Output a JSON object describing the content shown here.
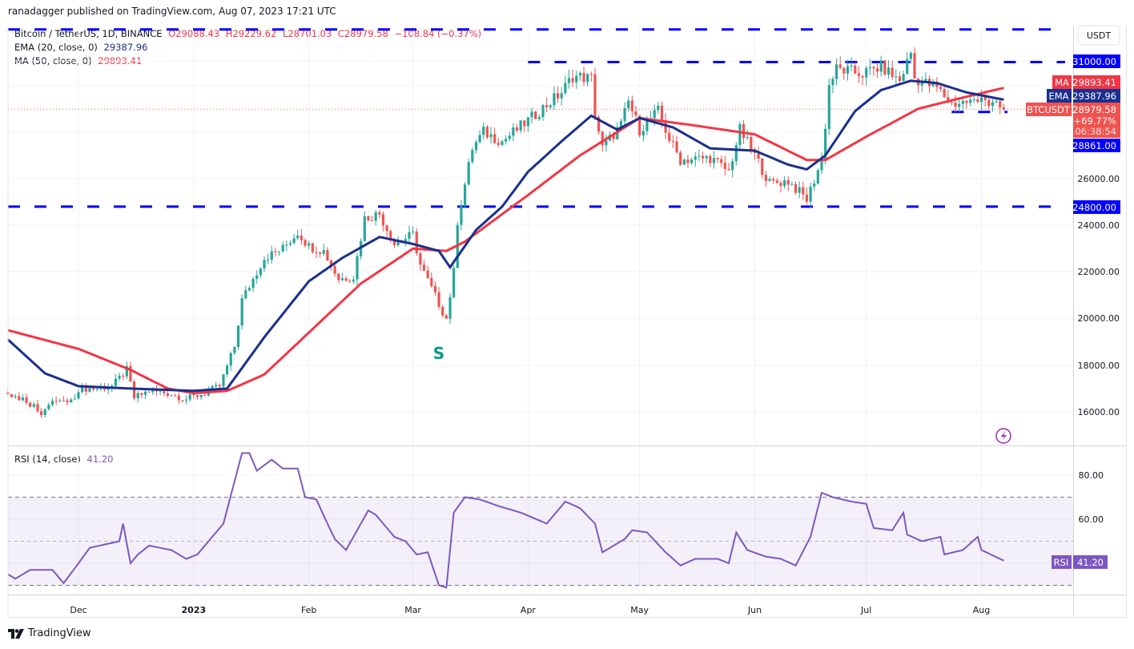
{
  "header": {
    "published": "ranadagger published on TradingView.com, Aug 07, 2023 17:21 UTC"
  },
  "legend": {
    "symbol": "Bitcoin / TetherUS, 1D, BINANCE",
    "open": "O29088.43",
    "high": "H29229.62",
    "low": "L28701.03",
    "close": "C28979.58",
    "change": "−108.84 (−0.37%)",
    "ema_label": "EMA (20, close, 0)",
    "ema_value": "29387.96",
    "ma_label": "MA (50, close, 0)",
    "ma_value": "29893.41",
    "rsi_label": "RSI (14, close)",
    "rsi_value": "41.20"
  },
  "axis": {
    "currency_button": "USDT",
    "price_ticks": [
      "26000.00",
      "24000.00",
      "22000.00",
      "20000.00",
      "18000.00",
      "16000.00"
    ],
    "rsi_ticks": [
      "80.00",
      "60.00"
    ],
    "x_ticks": [
      "Dec",
      "2023",
      "Feb",
      "Mar",
      "Apr",
      "May",
      "Jun",
      "Jul",
      "Aug"
    ],
    "level_labels": [
      "31000.00",
      "24800.00",
      "28861.00"
    ],
    "ma_tag": "MA",
    "ma_price": "29893.41",
    "ema_tag": "EMA",
    "ema_price": "29387.96",
    "symbol_tag": "BTCUSDT",
    "last_price": "28979.58",
    "last_change": "+69.77%",
    "countdown": "06:38:54",
    "rsi_tag": "RSI",
    "rsi_price": "41.20"
  },
  "annotation": {
    "s_label": "S"
  },
  "footer": {
    "brand": "TradingView"
  },
  "colors": {
    "up": "#26a69a",
    "down": "#ef5350",
    "ema": "#1a2f8f",
    "ma": "#f23645",
    "rsi": "#7e57c2",
    "levels": "#0000ff"
  },
  "chart_data": [
    {
      "type": "candlestick",
      "title": "Bitcoin / TetherUS, 1D, BINANCE",
      "ylim": [
        15000,
        33000
      ],
      "x_range": [
        "2022-11-12",
        "2023-08-07"
      ],
      "grid": true,
      "close_path": [
        [
          "2022-11-12",
          16700
        ],
        [
          "2022-11-16",
          16600
        ],
        [
          "2022-11-21",
          16000
        ],
        [
          "2022-11-25",
          16500
        ],
        [
          "2022-11-29",
          16400
        ],
        [
          "2022-12-01",
          17000
        ],
        [
          "2022-12-06",
          17000
        ],
        [
          "2022-12-10",
          17100
        ],
        [
          "2022-12-14",
          17800
        ],
        [
          "2022-12-16",
          16600
        ],
        [
          "2022-12-20",
          16900
        ],
        [
          "2022-12-25",
          16800
        ],
        [
          "2022-12-30",
          16550
        ],
        [
          "2023-01-04",
          16800
        ],
        [
          "2023-01-08",
          17100
        ],
        [
          "2023-01-12",
          18800
        ],
        [
          "2023-01-14",
          20800
        ],
        [
          "2023-01-20",
          22600
        ],
        [
          "2023-01-25",
          23000
        ],
        [
          "2023-01-29",
          23700
        ],
        [
          "2023-02-01",
          23100
        ],
        [
          "2023-02-05",
          22900
        ],
        [
          "2023-02-09",
          21700
        ],
        [
          "2023-02-13",
          21800
        ],
        [
          "2023-02-16",
          24300
        ],
        [
          "2023-02-20",
          24500
        ],
        [
          "2023-02-24",
          23200
        ],
        [
          "2023-03-01",
          23600
        ],
        [
          "2023-03-03",
          22300
        ],
        [
          "2023-03-09",
          20300
        ],
        [
          "2023-03-10",
          20000
        ],
        [
          "2023-03-12",
          22000
        ],
        [
          "2023-03-13",
          24200
        ],
        [
          "2023-03-17",
          27300
        ],
        [
          "2023-03-20",
          28000
        ],
        [
          "2023-03-25",
          27600
        ],
        [
          "2023-04-01",
          28500
        ],
        [
          "2023-04-10",
          29700
        ],
        [
          "2023-04-13",
          30400
        ],
        [
          "2023-04-18",
          30300
        ],
        [
          "2023-04-19",
          28800
        ],
        [
          "2023-04-21",
          27300
        ],
        [
          "2023-04-26",
          28300
        ],
        [
          "2023-04-28",
          29300
        ],
        [
          "2023-05-01",
          28100
        ],
        [
          "2023-05-06",
          28900
        ],
        [
          "2023-05-09",
          27700
        ],
        [
          "2023-05-12",
          26800
        ],
        [
          "2023-05-20",
          26900
        ],
        [
          "2023-05-25",
          26300
        ],
        [
          "2023-05-28",
          28100
        ],
        [
          "2023-06-01",
          27000
        ],
        [
          "2023-06-05",
          25800
        ],
        [
          "2023-06-10",
          25900
        ],
        [
          "2023-06-15",
          25100
        ],
        [
          "2023-06-19",
          26800
        ],
        [
          "2023-06-20",
          28300
        ],
        [
          "2023-06-21",
          30000
        ],
        [
          "2023-06-23",
          30700
        ],
        [
          "2023-06-30",
          30500
        ],
        [
          "2023-07-05",
          30800
        ],
        [
          "2023-07-10",
          30200
        ],
        [
          "2023-07-13",
          31400
        ],
        [
          "2023-07-14",
          30300
        ],
        [
          "2023-07-20",
          29900
        ],
        [
          "2023-07-24",
          29200
        ],
        [
          "2023-07-28",
          29300
        ],
        [
          "2023-07-31",
          29300
        ],
        [
          "2023-08-01",
          29700
        ],
        [
          "2023-08-03",
          29200
        ],
        [
          "2023-08-07",
          28979.58
        ]
      ],
      "ema20": [
        [
          "2022-11-12",
          19100
        ],
        [
          "2022-11-22",
          17650
        ],
        [
          "2022-12-01",
          17100
        ],
        [
          "2022-12-15",
          17000
        ],
        [
          "2023-01-01",
          16900
        ],
        [
          "2023-01-10",
          17000
        ],
        [
          "2023-01-20",
          19200
        ],
        [
          "2023-02-01",
          21600
        ],
        [
          "2023-02-10",
          22600
        ],
        [
          "2023-02-20",
          23500
        ],
        [
          "2023-03-01",
          23200
        ],
        [
          "2023-03-08",
          22900
        ],
        [
          "2023-03-11",
          22200
        ],
        [
          "2023-03-18",
          23800
        ],
        [
          "2023-03-25",
          24800
        ],
        [
          "2023-04-01",
          26300
        ],
        [
          "2023-04-10",
          27600
        ],
        [
          "2023-04-18",
          28700
        ],
        [
          "2023-04-25",
          28100
        ],
        [
          "2023-05-01",
          28600
        ],
        [
          "2023-05-10",
          28200
        ],
        [
          "2023-05-20",
          27300
        ],
        [
          "2023-06-01",
          27200
        ],
        [
          "2023-06-10",
          26600
        ],
        [
          "2023-06-15",
          26400
        ],
        [
          "2023-06-20",
          27000
        ],
        [
          "2023-06-28",
          28900
        ],
        [
          "2023-07-05",
          29800
        ],
        [
          "2023-07-13",
          30200
        ],
        [
          "2023-07-20",
          30100
        ],
        [
          "2023-07-28",
          29700
        ],
        [
          "2023-08-07",
          29387.96
        ]
      ],
      "ma50": [
        [
          "2022-11-12",
          19500
        ],
        [
          "2022-12-01",
          18700
        ],
        [
          "2022-12-15",
          17800
        ],
        [
          "2022-12-25",
          17000
        ],
        [
          "2023-01-01",
          16800
        ],
        [
          "2023-01-10",
          16900
        ],
        [
          "2023-01-20",
          17600
        ],
        [
          "2023-02-01",
          19400
        ],
        [
          "2023-02-15",
          21500
        ],
        [
          "2023-03-01",
          23000
        ],
        [
          "2023-03-10",
          22900
        ],
        [
          "2023-03-15",
          23300
        ],
        [
          "2023-04-01",
          25300
        ],
        [
          "2023-04-15",
          27000
        ],
        [
          "2023-05-01",
          28600
        ],
        [
          "2023-05-15",
          28300
        ],
        [
          "2023-06-01",
          27900
        ],
        [
          "2023-06-15",
          26800
        ],
        [
          "2023-06-20",
          26800
        ],
        [
          "2023-07-01",
          27800
        ],
        [
          "2023-07-15",
          29000
        ],
        [
          "2023-07-25",
          29400
        ],
        [
          "2023-08-07",
          29893.41
        ]
      ],
      "horizontal_lines": [
        {
          "price": 32400,
          "from": "2022-11-12"
        },
        {
          "price": 31000,
          "from": "2023-04-01",
          "label": "31000.00"
        },
        {
          "price": 24800,
          "from": "2022-11-12",
          "label": "24800.00"
        },
        {
          "price": 28861,
          "from": "2023-07-24",
          "to": "2023-08-08",
          "label": "28861.00"
        }
      ],
      "annotations": [
        {
          "text": "S",
          "date": "2023-03-08",
          "price": 18000
        }
      ]
    },
    {
      "type": "line",
      "title": "RSI (14, close)",
      "ylim": [
        22,
        95
      ],
      "bands": [
        30,
        50,
        70
      ],
      "series": [
        {
          "name": "RSI",
          "values": [
            [
              "2022-11-12",
              35
            ],
            [
              "2022-11-14",
              33
            ],
            [
              "2022-11-18",
              37
            ],
            [
              "2022-11-24",
              37
            ],
            [
              "2022-11-27",
              31
            ],
            [
              "2022-12-01",
              40
            ],
            [
              "2022-12-04",
              47
            ],
            [
              "2022-12-12",
              50
            ],
            [
              "2022-12-13",
              58
            ],
            [
              "2022-12-15",
              40
            ],
            [
              "2022-12-17",
              44
            ],
            [
              "2022-12-20",
              48
            ],
            [
              "2022-12-26",
              46
            ],
            [
              "2022-12-30",
              42
            ],
            [
              "2023-01-02",
              44
            ],
            [
              "2023-01-05",
              50
            ],
            [
              "2023-01-09",
              58
            ],
            [
              "2023-01-14",
              90
            ],
            [
              "2023-01-16",
              90
            ],
            [
              "2023-01-18",
              82
            ],
            [
              "2023-01-22",
              87
            ],
            [
              "2023-01-25",
              83
            ],
            [
              "2023-01-29",
              83
            ],
            [
              "2023-01-31",
              70
            ],
            [
              "2023-02-03",
              69
            ],
            [
              "2023-02-06",
              58
            ],
            [
              "2023-02-08",
              51
            ],
            [
              "2023-02-11",
              46
            ],
            [
              "2023-02-13",
              52
            ],
            [
              "2023-02-17",
              64
            ],
            [
              "2023-02-19",
              62
            ],
            [
              "2023-02-24",
              52
            ],
            [
              "2023-02-27",
              50
            ],
            [
              "2023-03-02",
              44
            ],
            [
              "2023-03-05",
              45
            ],
            [
              "2023-03-08",
              30
            ],
            [
              "2023-03-10",
              29
            ],
            [
              "2023-03-12",
              63
            ],
            [
              "2023-03-15",
              70
            ],
            [
              "2023-03-19",
              69
            ],
            [
              "2023-03-24",
              66
            ],
            [
              "2023-03-30",
              63
            ],
            [
              "2023-04-06",
              58
            ],
            [
              "2023-04-11",
              68
            ],
            [
              "2023-04-15",
              65
            ],
            [
              "2023-04-19",
              58
            ],
            [
              "2023-04-21",
              45
            ],
            [
              "2023-04-27",
              51
            ],
            [
              "2023-04-29",
              55
            ],
            [
              "2023-05-03",
              54
            ],
            [
              "2023-05-08",
              45
            ],
            [
              "2023-05-12",
              39
            ],
            [
              "2023-05-16",
              42
            ],
            [
              "2023-05-22",
              42
            ],
            [
              "2023-05-25",
              40
            ],
            [
              "2023-05-27",
              54
            ],
            [
              "2023-05-30",
              46
            ],
            [
              "2023-06-04",
              43
            ],
            [
              "2023-06-08",
              42
            ],
            [
              "2023-06-12",
              39
            ],
            [
              "2023-06-16",
              52
            ],
            [
              "2023-06-19",
              72
            ],
            [
              "2023-06-22",
              70
            ],
            [
              "2023-06-27",
              68
            ],
            [
              "2023-07-01",
              67
            ],
            [
              "2023-07-03",
              56
            ],
            [
              "2023-07-08",
              55
            ],
            [
              "2023-07-11",
              63
            ],
            [
              "2023-07-12",
              53
            ],
            [
              "2023-07-16",
              50
            ],
            [
              "2023-07-21",
              52
            ],
            [
              "2023-07-22",
              44
            ],
            [
              "2023-07-27",
              46
            ],
            [
              "2023-07-31",
              52
            ],
            [
              "2023-08-01",
              46
            ],
            [
              "2023-08-07",
              41.2
            ]
          ]
        }
      ]
    }
  ]
}
